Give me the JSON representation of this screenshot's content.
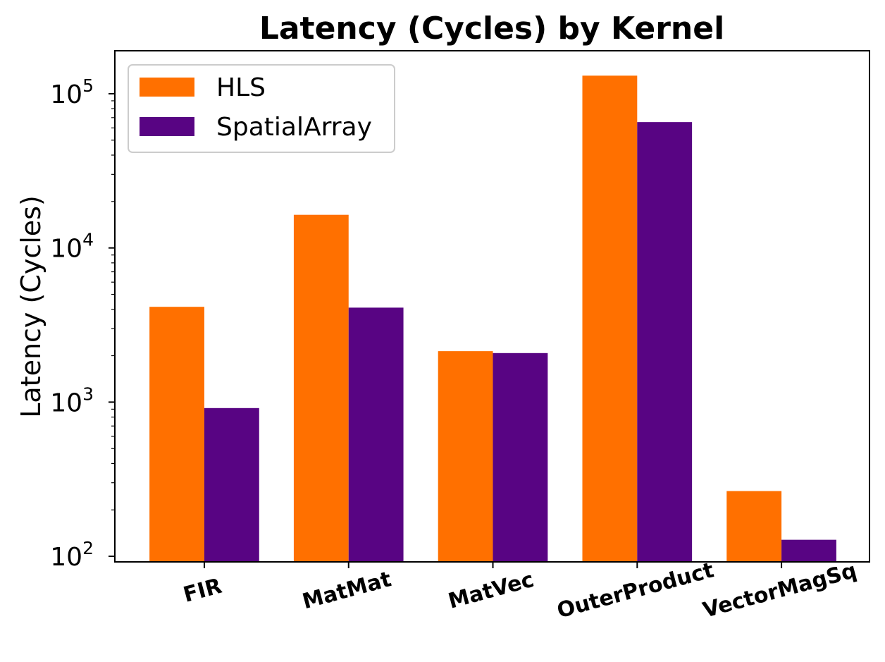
{
  "chart_data": {
    "type": "bar",
    "title": "Latency (Cycles) by Kernel",
    "xlabel": "",
    "ylabel": "Latency (Cycles)",
    "yscale": "log",
    "ylim": [
      92,
      190000
    ],
    "yticks": [
      {
        "value": 100,
        "base": "10",
        "exp": "2"
      },
      {
        "value": 1000,
        "base": "10",
        "exp": "3"
      },
      {
        "value": 10000,
        "base": "10",
        "exp": "4"
      },
      {
        "value": 100000,
        "base": "10",
        "exp": "5"
      }
    ],
    "categories": [
      "FIR",
      "MatMat",
      "MatVec",
      "OuterProduct",
      "VectorMagSq"
    ],
    "series": [
      {
        "name": "HLS",
        "color": "#ff7000",
        "values": [
          4150,
          16400,
          2140,
          131000,
          265
        ]
      },
      {
        "name": "SpatialArray",
        "color": "#580483",
        "values": [
          915,
          4100,
          2080,
          65500,
          128
        ]
      }
    ],
    "legend": "top-left",
    "grid": false
  }
}
